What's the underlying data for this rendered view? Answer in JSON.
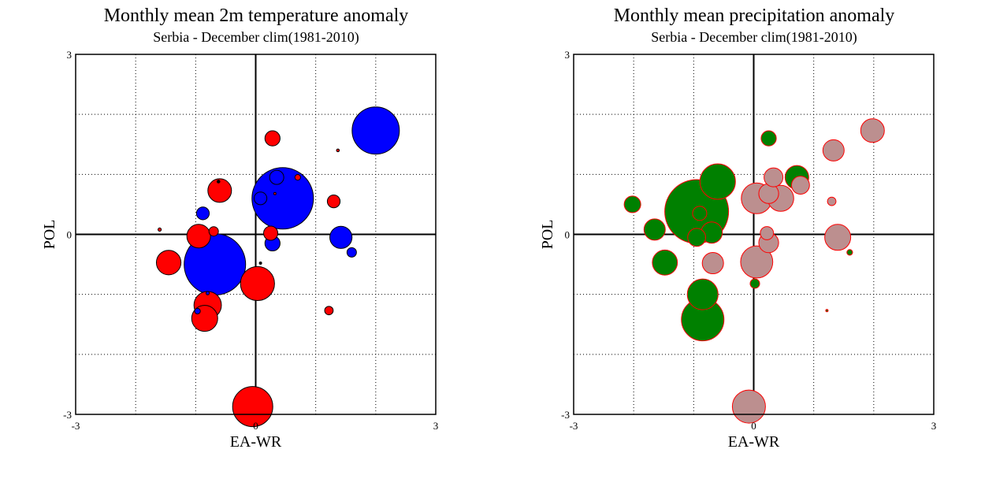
{
  "chart_data": [
    {
      "type": "scatter",
      "title": "Monthly mean 2m temperature anomaly",
      "subtitle": "Serbia - December  clim(1981-2010)",
      "xlabel": "EA-WR",
      "ylabel": "POL",
      "xlim": [
        -3,
        3
      ],
      "ylim": [
        -3,
        3
      ],
      "x_ticks": [
        "-3",
        "0",
        "3"
      ],
      "y_ticks": [
        "3",
        "0",
        "-3"
      ],
      "grid": true,
      "bubble_outline": "#000000",
      "points": [
        {
          "x": 2.0,
          "y": 1.73,
          "size": 1.0,
          "color": "#0000ff"
        },
        {
          "x": 0.45,
          "y": 0.6,
          "size": 1.3,
          "color": "#0000ff"
        },
        {
          "x": -0.68,
          "y": -0.5,
          "size": 1.3,
          "color": "#0000ff"
        },
        {
          "x": 1.42,
          "y": -0.05,
          "size": 0.47,
          "color": "#0000ff"
        },
        {
          "x": 0.28,
          "y": -0.15,
          "size": 0.32,
          "color": "#0000ff"
        },
        {
          "x": 0.35,
          "y": 0.95,
          "size": 0.3,
          "color": "#0000ff"
        },
        {
          "x": 0.08,
          "y": 0.6,
          "size": 0.27,
          "color": "#0000ff"
        },
        {
          "x": -0.88,
          "y": 0.35,
          "size": 0.27,
          "color": "#0000ff"
        },
        {
          "x": 1.6,
          "y": -0.3,
          "size": 0.2,
          "color": "#0000ff"
        },
        {
          "x": -0.97,
          "y": -1.28,
          "size": 0.12,
          "color": "#0000ff"
        },
        {
          "x": -0.6,
          "y": 0.73,
          "size": 0.5,
          "color": "#ff0000"
        },
        {
          "x": 0.28,
          "y": 1.6,
          "size": 0.32,
          "color": "#ff0000"
        },
        {
          "x": 1.3,
          "y": 0.55,
          "size": 0.27,
          "color": "#ff0000"
        },
        {
          "x": -0.95,
          "y": -0.03,
          "size": 0.5,
          "color": "#ff0000"
        },
        {
          "x": 0.25,
          "y": 0.02,
          "size": 0.3,
          "color": "#ff0000"
        },
        {
          "x": -0.7,
          "y": 0.05,
          "size": 0.2,
          "color": "#ff0000"
        },
        {
          "x": -1.45,
          "y": -0.47,
          "size": 0.52,
          "color": "#ff0000"
        },
        {
          "x": 0.03,
          "y": -0.82,
          "size": 0.72,
          "color": "#ff0000"
        },
        {
          "x": -0.8,
          "y": -1.18,
          "size": 0.58,
          "color": "#ff0000"
        },
        {
          "x": -0.85,
          "y": -1.4,
          "size": 0.55,
          "color": "#ff0000"
        },
        {
          "x": 1.22,
          "y": -1.27,
          "size": 0.18,
          "color": "#ff0000"
        },
        {
          "x": -0.05,
          "y": -2.87,
          "size": 0.85,
          "color": "#ff0000"
        },
        {
          "x": -1.6,
          "y": 0.08,
          "size": 0.07,
          "color": "#ff0000"
        },
        {
          "x": 1.37,
          "y": 1.4,
          "size": 0.06,
          "color": "#ff0000"
        },
        {
          "x": 0.7,
          "y": 0.95,
          "size": 0.12,
          "color": "#ff0000"
        },
        {
          "x": 0.32,
          "y": 0.68,
          "size": 0.05,
          "color": "#ff0000"
        },
        {
          "x": -0.62,
          "y": 0.88,
          "size": 0.06,
          "color": "#000000"
        },
        {
          "x": 0.08,
          "y": -0.48,
          "size": 0.05,
          "color": "#000000"
        },
        {
          "x": -0.8,
          "y": -0.98,
          "size": 0.07,
          "color": "#0000ff"
        }
      ]
    },
    {
      "type": "scatter",
      "title": "Monthly mean precipitation anomaly",
      "subtitle": "Serbia - December  clim(1981-2010)",
      "xlabel": "EA-WR",
      "ylabel": "POL",
      "xlim": [
        -3,
        3
      ],
      "ylim": [
        -3,
        3
      ],
      "x_ticks": [
        "-3",
        "0",
        "3"
      ],
      "y_ticks": [
        "3",
        "0",
        "-3"
      ],
      "grid": true,
      "bubble_outline": "#ff0000",
      "points": [
        {
          "x": -0.95,
          "y": 0.38,
          "size": 1.35,
          "color": "#008000"
        },
        {
          "x": -0.6,
          "y": 0.88,
          "size": 0.75,
          "color": "#008000"
        },
        {
          "x": -2.02,
          "y": 0.5,
          "size": 0.35,
          "color": "#008000"
        },
        {
          "x": -1.65,
          "y": 0.08,
          "size": 0.45,
          "color": "#008000"
        },
        {
          "x": -0.7,
          "y": 0.03,
          "size": 0.45,
          "color": "#008000"
        },
        {
          "x": -0.95,
          "y": -0.05,
          "size": 0.38,
          "color": "#008000"
        },
        {
          "x": -1.48,
          "y": -0.47,
          "size": 0.53,
          "color": "#008000"
        },
        {
          "x": -0.85,
          "y": -1.0,
          "size": 0.65,
          "color": "#008000"
        },
        {
          "x": -0.85,
          "y": -1.42,
          "size": 0.9,
          "color": "#008000"
        },
        {
          "x": 0.72,
          "y": 0.95,
          "size": 0.5,
          "color": "#008000"
        },
        {
          "x": 0.25,
          "y": 1.6,
          "size": 0.32,
          "color": "#008000"
        },
        {
          "x": 0.02,
          "y": -0.82,
          "size": 0.2,
          "color": "#008000"
        },
        {
          "x": 1.6,
          "y": -0.3,
          "size": 0.12,
          "color": "#008000"
        },
        {
          "x": 1.22,
          "y": -1.27,
          "size": 0.05,
          "color": "#008000"
        },
        {
          "x": 1.98,
          "y": 1.73,
          "size": 0.5,
          "color": "#bc8f8f"
        },
        {
          "x": 1.33,
          "y": 1.4,
          "size": 0.45,
          "color": "#bc8f8f"
        },
        {
          "x": 0.05,
          "y": 0.6,
          "size": 0.65,
          "color": "#bc8f8f"
        },
        {
          "x": 0.45,
          "y": 0.6,
          "size": 0.55,
          "color": "#bc8f8f"
        },
        {
          "x": 0.25,
          "y": 0.68,
          "size": 0.42,
          "color": "#bc8f8f"
        },
        {
          "x": 0.33,
          "y": 0.95,
          "size": 0.4,
          "color": "#bc8f8f"
        },
        {
          "x": 0.78,
          "y": 0.82,
          "size": 0.38,
          "color": "#bc8f8f"
        },
        {
          "x": 1.4,
          "y": -0.05,
          "size": 0.55,
          "color": "#bc8f8f"
        },
        {
          "x": 0.25,
          "y": -0.14,
          "size": 0.42,
          "color": "#bc8f8f"
        },
        {
          "x": 0.22,
          "y": 0.02,
          "size": 0.28,
          "color": "#bc8f8f"
        },
        {
          "x": -0.68,
          "y": -0.48,
          "size": 0.45,
          "color": "#bc8f8f"
        },
        {
          "x": 0.05,
          "y": -0.46,
          "size": 0.68,
          "color": "#bc8f8f"
        },
        {
          "x": -0.08,
          "y": -2.87,
          "size": 0.7,
          "color": "#bc8f8f"
        },
        {
          "x": 1.3,
          "y": 0.55,
          "size": 0.18,
          "color": "#bc8f8f"
        },
        {
          "x": -0.9,
          "y": 0.35,
          "size": 0.3,
          "color": "#008000"
        }
      ]
    }
  ]
}
